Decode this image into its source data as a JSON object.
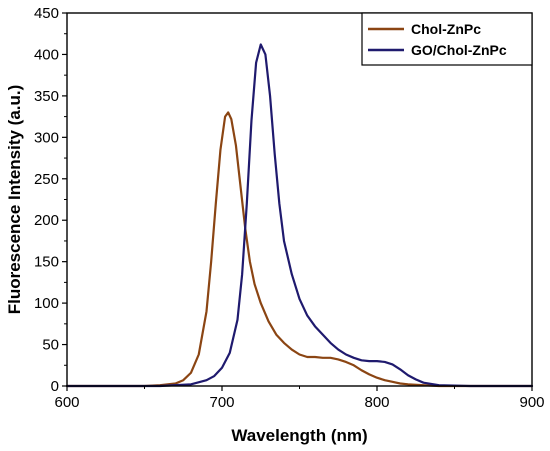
{
  "chart_data": {
    "type": "line",
    "xlabel": "Wavelength (nm)",
    "ylabel": "Fluorescence Intensity (a.u.)",
    "xlim": [
      600,
      900
    ],
    "ylim": [
      0,
      450
    ],
    "xticks": [
      600,
      700,
      800,
      900
    ],
    "yticks": [
      0,
      50,
      100,
      150,
      200,
      250,
      300,
      350,
      400,
      450
    ],
    "grid": false,
    "legend_position": "top-right",
    "series": [
      {
        "name": "Chol-ZnPc",
        "color": "#8B4513",
        "x": [
          600,
          650,
          660,
          670,
          675,
          680,
          685,
          690,
          693,
          696,
          699,
          702,
          704,
          706,
          709,
          712,
          715,
          718,
          721,
          725,
          730,
          735,
          740,
          745,
          750,
          755,
          760,
          765,
          770,
          775,
          780,
          785,
          790,
          795,
          800,
          805,
          810,
          815,
          820,
          830,
          840,
          860,
          900
        ],
        "y": [
          0,
          0,
          1,
          3,
          7,
          16,
          38,
          90,
          150,
          220,
          285,
          325,
          330,
          322,
          290,
          240,
          190,
          150,
          123,
          100,
          78,
          62,
          52,
          44,
          38,
          35,
          35,
          34,
          34,
          32,
          29,
          25,
          19,
          14,
          10,
          7,
          5,
          3,
          2,
          1,
          0,
          0,
          0
        ]
      },
      {
        "name": "GO/Chol-ZnPc",
        "color": "#1F1A6E",
        "x": [
          600,
          660,
          680,
          690,
          695,
          700,
          705,
          710,
          713,
          716,
          719,
          722,
          725,
          728,
          731,
          734,
          737,
          740,
          745,
          750,
          755,
          760,
          765,
          770,
          775,
          780,
          785,
          790,
          795,
          800,
          805,
          810,
          815,
          820,
          825,
          830,
          840,
          860,
          900
        ],
        "y": [
          0,
          0,
          2,
          7,
          12,
          22,
          40,
          80,
          135,
          220,
          320,
          390,
          412,
          400,
          350,
          280,
          220,
          175,
          135,
          105,
          85,
          72,
          62,
          52,
          44,
          38,
          34,
          31,
          30,
          30,
          29,
          26,
          20,
          13,
          8,
          4,
          1,
          0,
          0
        ]
      }
    ]
  }
}
